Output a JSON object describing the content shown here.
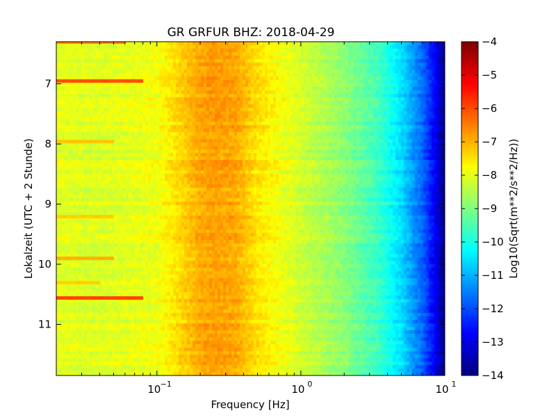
{
  "chart_data": {
    "type": "heatmap",
    "title": "GR GRFUR BHZ: 2018-04-29",
    "xlabel": "Frequency [Hz]",
    "ylabel": "Lokalzeit (UTC + 2 Stunde)",
    "x_scale": "log",
    "x_range": [
      0.02,
      10
    ],
    "x_ticks": [
      {
        "value": 0.1,
        "base": "10",
        "exp": "−1"
      },
      {
        "value": 1,
        "base": "10",
        "exp": "0"
      },
      {
        "value": 10,
        "base": "10",
        "exp": "1"
      }
    ],
    "y_range_hours": [
      6.3,
      11.85
    ],
    "y_inverted": true,
    "y_ticks": [
      7,
      8,
      9,
      10,
      11
    ],
    "colorbar": {
      "label": "Log10(Sqrt(m**2/s**2/Hz))",
      "colormap": "jet",
      "range": [
        -14,
        -4
      ],
      "ticks": [
        "−4",
        "−5",
        "−6",
        "−7",
        "−8",
        "−9",
        "−10",
        "−11",
        "−12",
        "−13",
        "−14"
      ]
    },
    "spectrum_profile_log10": [
      {
        "freq_hz": 0.02,
        "value": -8.0
      },
      {
        "freq_hz": 0.04,
        "value": -8.1
      },
      {
        "freq_hz": 0.06,
        "value": -8.0
      },
      {
        "freq_hz": 0.1,
        "value": -7.9
      },
      {
        "freq_hz": 0.14,
        "value": -7.4
      },
      {
        "freq_hz": 0.2,
        "value": -6.9
      },
      {
        "freq_hz": 0.25,
        "value": -6.8
      },
      {
        "freq_hz": 0.35,
        "value": -6.9
      },
      {
        "freq_hz": 0.5,
        "value": -7.5
      },
      {
        "freq_hz": 1.0,
        "value": -8.2
      },
      {
        "freq_hz": 2.0,
        "value": -8.9
      },
      {
        "freq_hz": 3.5,
        "value": -9.7
      },
      {
        "freq_hz": 5.0,
        "value": -10.6
      },
      {
        "freq_hz": 7.0,
        "value": -11.8
      },
      {
        "freq_hz": 8.5,
        "value": -12.8
      },
      {
        "freq_hz": 10.0,
        "value": -14.0
      }
    ],
    "low_frequency_bursts": [
      {
        "time_hours": 6.3,
        "freq_max_hz": 0.06,
        "value": -6.5
      },
      {
        "time_hours": 6.95,
        "freq_max_hz": 0.08,
        "value": -6.0
      },
      {
        "time_hours": 7.95,
        "freq_max_hz": 0.05,
        "value": -7.2
      },
      {
        "time_hours": 9.2,
        "freq_max_hz": 0.05,
        "value": -7.3
      },
      {
        "time_hours": 9.9,
        "freq_max_hz": 0.05,
        "value": -7.0
      },
      {
        "time_hours": 10.55,
        "freq_max_hz": 0.08,
        "value": -5.9
      },
      {
        "time_hours": 10.3,
        "freq_max_hz": 0.04,
        "value": -7.3
      }
    ]
  }
}
